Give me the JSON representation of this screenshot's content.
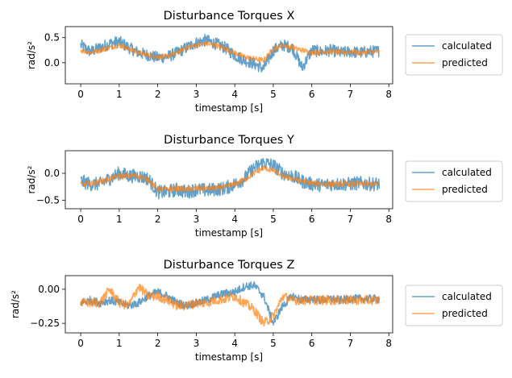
{
  "chart_data": [
    {
      "type": "line",
      "title": "Disturbance Torques X",
      "xlabel": "timestamp [s]",
      "ylabel": "rad/s²",
      "xlim": [
        -0.4,
        8.1
      ],
      "ylim": [
        -0.42,
        0.72
      ],
      "xticks": [
        0,
        1,
        2,
        3,
        4,
        5,
        6,
        7,
        8
      ],
      "yticks": [
        0.0,
        0.5
      ],
      "ytick_labels": [
        "0.0",
        "0.5"
      ],
      "legend": "outside-right",
      "series": [
        {
          "name": "calculated",
          "color": "#1f77b4",
          "x": [
            0,
            0.25,
            0.5,
            0.75,
            1.0,
            1.25,
            1.5,
            1.75,
            2.0,
            2.25,
            2.5,
            2.75,
            3.0,
            3.25,
            3.5,
            3.75,
            4.0,
            4.25,
            4.5,
            4.75,
            5.0,
            5.25,
            5.5,
            5.75,
            6.0,
            6.25,
            6.5,
            6.75,
            7.0,
            7.25,
            7.5,
            7.75
          ],
          "y": [
            0.35,
            0.22,
            0.3,
            0.38,
            0.42,
            0.3,
            0.2,
            0.15,
            0.1,
            0.12,
            0.2,
            0.3,
            0.4,
            0.45,
            0.38,
            0.3,
            0.15,
            0.05,
            -0.02,
            -0.12,
            0.25,
            0.35,
            0.3,
            -0.1,
            0.25,
            0.22,
            0.25,
            0.2,
            0.22,
            0.2,
            0.22,
            0.23
          ],
          "noise": 0.12
        },
        {
          "name": "predicted",
          "color": "#ff7f0e",
          "x": [
            0,
            0.25,
            0.5,
            0.75,
            1.0,
            1.25,
            1.5,
            1.75,
            2.0,
            2.25,
            2.5,
            2.75,
            3.0,
            3.25,
            3.5,
            3.75,
            4.0,
            4.25,
            4.5,
            4.75,
            5.0,
            5.25,
            5.5,
            5.75,
            6.0,
            6.25,
            6.5,
            6.75,
            7.0,
            7.25,
            7.5,
            7.75
          ],
          "y": [
            0.25,
            0.2,
            0.25,
            0.3,
            0.35,
            0.28,
            0.2,
            0.15,
            0.12,
            0.12,
            0.2,
            0.3,
            0.35,
            0.38,
            0.35,
            0.28,
            0.2,
            0.12,
            0.08,
            0.05,
            0.28,
            0.35,
            0.3,
            0.25,
            0.2,
            0.22,
            0.22,
            0.2,
            0.22,
            0.2,
            0.21,
            0.22
          ],
          "noise": 0.05
        }
      ]
    },
    {
      "type": "line",
      "title": "Disturbance Torques Y",
      "xlabel": "timestamp [s]",
      "ylabel": "rad/s²",
      "xlim": [
        -0.4,
        8.1
      ],
      "ylim": [
        -0.66,
        0.42
      ],
      "xticks": [
        0,
        1,
        2,
        3,
        4,
        5,
        6,
        7,
        8
      ],
      "yticks": [
        -0.5,
        0.0
      ],
      "ytick_labels": [
        "−0.5",
        "0.0"
      ],
      "legend": "outside-right",
      "series": [
        {
          "name": "calculated",
          "color": "#1f77b4",
          "x": [
            0,
            0.25,
            0.5,
            0.75,
            1.0,
            1.25,
            1.5,
            1.75,
            2.0,
            2.25,
            2.5,
            2.75,
            3.0,
            3.25,
            3.5,
            3.75,
            4.0,
            4.25,
            4.5,
            4.75,
            5.0,
            5.25,
            5.5,
            5.75,
            6.0,
            6.25,
            6.5,
            6.75,
            7.0,
            7.25,
            7.5,
            7.75
          ],
          "y": [
            -0.15,
            -0.2,
            -0.2,
            -0.1,
            0.0,
            -0.05,
            -0.05,
            -0.1,
            -0.35,
            -0.35,
            -0.3,
            -0.35,
            -0.3,
            -0.32,
            -0.3,
            -0.28,
            -0.2,
            -0.1,
            0.1,
            0.2,
            0.15,
            0.0,
            -0.05,
            -0.15,
            -0.2,
            -0.22,
            -0.2,
            -0.2,
            -0.2,
            -0.18,
            -0.2,
            -0.2
          ],
          "noise": 0.13
        },
        {
          "name": "predicted",
          "color": "#ff7f0e",
          "x": [
            0,
            0.25,
            0.5,
            0.75,
            1.0,
            1.25,
            1.5,
            1.75,
            2.0,
            2.25,
            2.5,
            2.75,
            3.0,
            3.25,
            3.5,
            3.75,
            4.0,
            4.25,
            4.5,
            4.75,
            5.0,
            5.25,
            5.5,
            5.75,
            6.0,
            6.25,
            6.5,
            6.75,
            7.0,
            7.25,
            7.5,
            7.75
          ],
          "y": [
            -0.2,
            -0.2,
            -0.15,
            -0.1,
            -0.05,
            -0.05,
            -0.05,
            -0.12,
            -0.3,
            -0.3,
            -0.28,
            -0.3,
            -0.28,
            -0.28,
            -0.28,
            -0.25,
            -0.2,
            -0.12,
            0.0,
            0.1,
            0.05,
            -0.05,
            -0.1,
            -0.15,
            -0.18,
            -0.2,
            -0.2,
            -0.2,
            -0.2,
            -0.2,
            -0.2,
            -0.2
          ],
          "noise": 0.05
        }
      ]
    },
    {
      "type": "line",
      "title": "Disturbance Torques Z",
      "xlabel": "timestamp [s]",
      "ylabel": "rad/s²",
      "xlim": [
        -0.4,
        8.1
      ],
      "ylim": [
        -0.32,
        0.1
      ],
      "xticks": [
        0,
        1,
        2,
        3,
        4,
        5,
        6,
        7,
        8
      ],
      "yticks": [
        -0.25,
        0.0
      ],
      "ytick_labels": [
        "−0.25",
        "0.00"
      ],
      "legend": "outside-right",
      "series": [
        {
          "name": "calculated",
          "color": "#1f77b4",
          "x": [
            0,
            0.25,
            0.5,
            0.75,
            1.0,
            1.25,
            1.5,
            1.75,
            2.0,
            2.25,
            2.5,
            2.75,
            3.0,
            3.25,
            3.5,
            3.75,
            4.0,
            4.25,
            4.5,
            4.75,
            5.0,
            5.25,
            5.5,
            5.75,
            6.0,
            6.25,
            6.5,
            6.75,
            7.0,
            7.25,
            7.5,
            7.75
          ],
          "y": [
            -0.1,
            -0.08,
            -0.1,
            -0.08,
            -0.1,
            -0.12,
            -0.1,
            -0.05,
            -0.02,
            -0.05,
            -0.1,
            -0.12,
            -0.1,
            -0.08,
            -0.05,
            -0.03,
            -0.02,
            0.02,
            0.03,
            -0.05,
            -0.25,
            -0.12,
            -0.05,
            -0.08,
            -0.07,
            -0.08,
            -0.07,
            -0.08,
            -0.07,
            -0.07,
            -0.07,
            -0.07
          ],
          "noise": 0.03
        },
        {
          "name": "predicted",
          "color": "#ff7f0e",
          "x": [
            0,
            0.25,
            0.5,
            0.75,
            1.0,
            1.25,
            1.5,
            1.75,
            2.0,
            2.25,
            2.5,
            2.75,
            3.0,
            3.25,
            3.5,
            3.75,
            4.0,
            4.25,
            4.5,
            4.75,
            5.0,
            5.25,
            5.5,
            5.75,
            6.0,
            6.25,
            6.5,
            6.75,
            7.0,
            7.25,
            7.5,
            7.75
          ],
          "y": [
            -0.1,
            -0.1,
            -0.1,
            0.0,
            -0.1,
            -0.12,
            0.02,
            -0.05,
            -0.05,
            -0.08,
            -0.12,
            -0.12,
            -0.1,
            -0.1,
            -0.08,
            -0.07,
            -0.05,
            -0.1,
            -0.15,
            -0.25,
            -0.2,
            -0.05,
            -0.08,
            -0.08,
            -0.08,
            -0.08,
            -0.08,
            -0.08,
            -0.08,
            -0.08,
            -0.08,
            -0.08
          ],
          "noise": 0.035
        }
      ]
    }
  ]
}
